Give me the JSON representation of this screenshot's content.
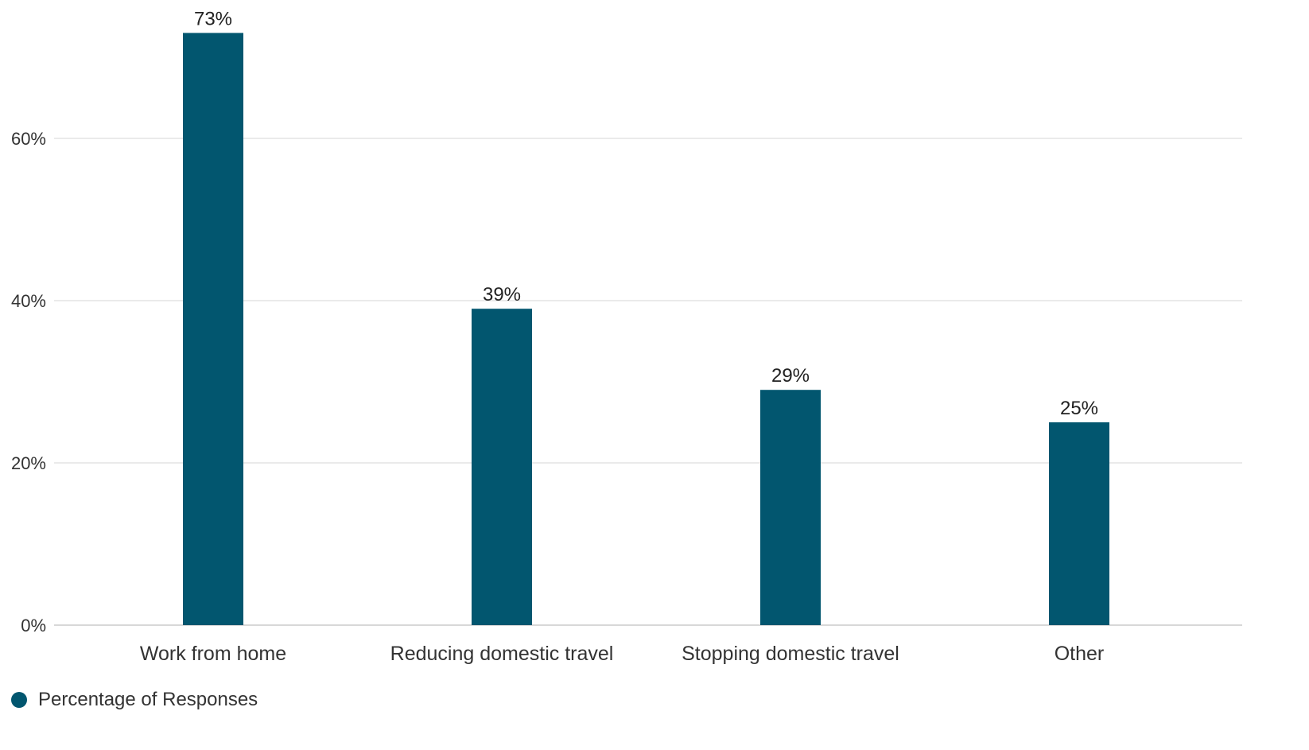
{
  "chart_data": {
    "type": "bar",
    "categories": [
      "Work from home",
      "Reducing domestic travel",
      "Stopping domestic travel",
      "Other"
    ],
    "series": [
      {
        "name": "Percentage of Responses",
        "values": [
          73,
          39,
          29,
          25
        ],
        "color": "#02566f"
      }
    ],
    "data_labels": [
      "73%",
      "39%",
      "29%",
      "25%"
    ],
    "yticks": [
      0,
      20,
      40,
      60
    ],
    "ytick_labels": [
      "0%",
      "20%",
      "40%",
      "60%"
    ],
    "ylim": [
      0,
      75
    ],
    "grid": true,
    "legend_position": "bottom-left",
    "title": "",
    "xlabel": "",
    "ylabel": ""
  }
}
